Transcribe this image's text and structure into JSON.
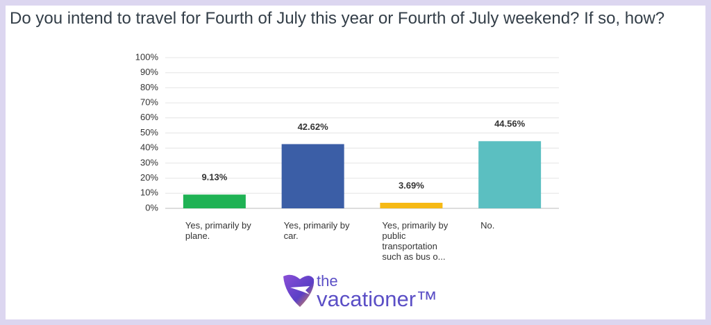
{
  "chart_data": {
    "type": "bar",
    "title": "Do you intend to travel for Fourth of July this year or Fourth of July weekend? If so, how?",
    "categories": [
      "Yes, primarily by plane.",
      "Yes, primarily by car.",
      "Yes, primarily by public transportation such as bus o...",
      "No."
    ],
    "values": [
      9.13,
      42.62,
      3.69,
      44.56
    ],
    "value_labels": [
      "9.13%",
      "42.62%",
      "3.69%",
      "44.56%"
    ],
    "colors": [
      "#1fb254",
      "#3b5ea6",
      "#f6b914",
      "#5bbfc1"
    ],
    "ylim": [
      0,
      100
    ],
    "yticks": [
      {
        "value": 0,
        "label": "0%"
      },
      {
        "value": 10,
        "label": "10%"
      },
      {
        "value": 20,
        "label": "20%"
      },
      {
        "value": 30,
        "label": "30%"
      },
      {
        "value": 40,
        "label": "40%"
      },
      {
        "value": 50,
        "label": "50%"
      },
      {
        "value": 60,
        "label": "60%"
      },
      {
        "value": 70,
        "label": "70%"
      },
      {
        "value": 80,
        "label": "80%"
      },
      {
        "value": 90,
        "label": "90%"
      },
      {
        "value": 100,
        "label": "100%"
      }
    ],
    "grid": true
  },
  "logo": {
    "small": "the",
    "large": "vacationer™"
  }
}
